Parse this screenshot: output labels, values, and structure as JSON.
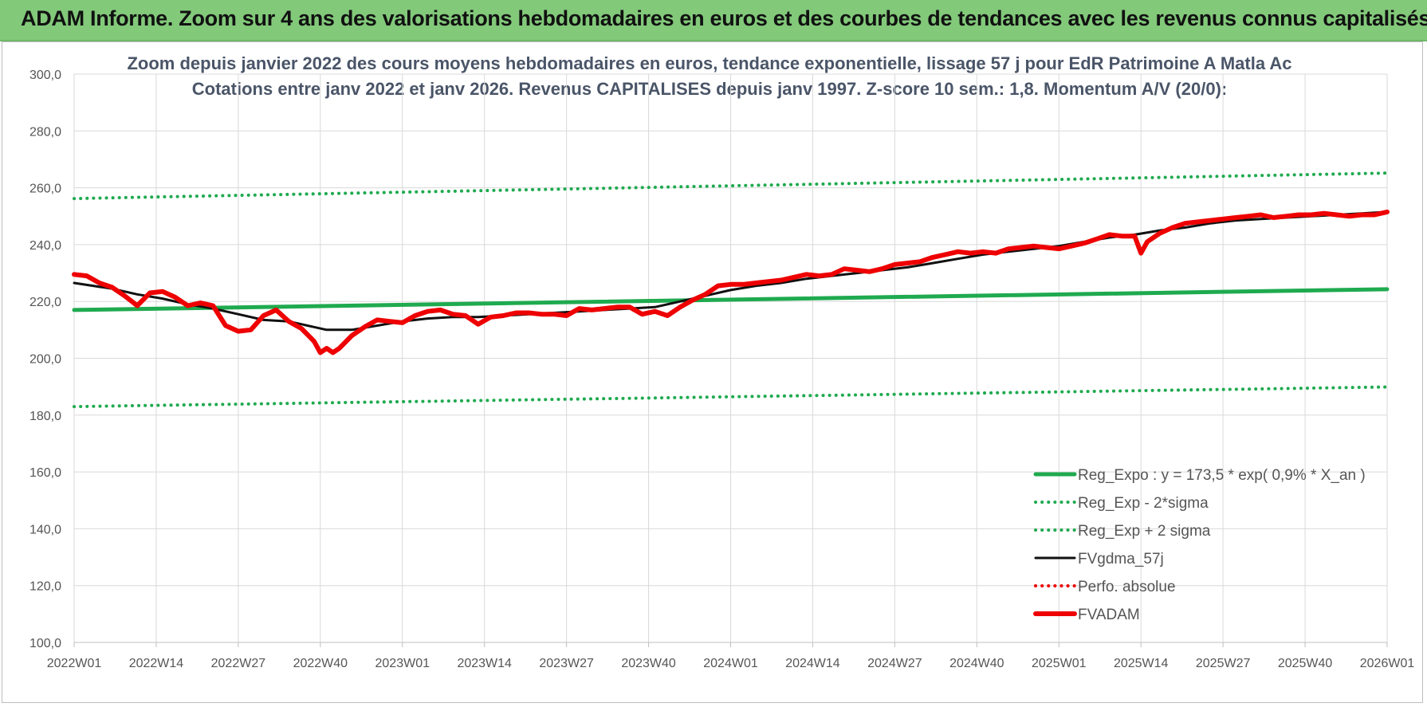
{
  "header": {
    "title": "ADAM Informe. Zoom sur 4 ans des valorisations hebdomadaires en euros et des courbes de tendances avec les revenus connus capitalisés"
  },
  "colors": {
    "header_bg": "#82c97a",
    "reg": "#1faa4f",
    "black": "#111111",
    "red": "#ee0000"
  },
  "chart_data": {
    "type": "line",
    "title": "Zoom depuis janvier 2022 des cours moyens hebdomadaires en euros, tendance exponentielle, lissage 57 j pour EdR Patrimoine A Matla Ac",
    "subtitle": "Cotations entre janv 2022 et janv 2026. Revenus CAPITALISES depuis janv 1997. Z-score 10 sem.: 1,8. Momentum A/V (20/0):",
    "ylim": [
      100,
      300
    ],
    "yticks": [
      "100,0",
      "120,0",
      "140,0",
      "160,0",
      "180,0",
      "200,0",
      "220,0",
      "240,0",
      "260,0",
      "280,0",
      "300,0"
    ],
    "xlim": [
      0,
      208
    ],
    "xtick_positions": [
      0,
      13,
      26,
      39,
      52,
      65,
      78,
      91,
      104,
      117,
      130,
      143,
      156,
      169,
      182,
      195,
      208
    ],
    "xticks": [
      "2022W01",
      "2022W14",
      "2022W27",
      "2022W40",
      "2023W01",
      "2023W14",
      "2023W27",
      "2023W40",
      "2024W01",
      "2024W14",
      "2024W27",
      "2024W40",
      "2025W01",
      "2025W14",
      "2025W27",
      "2025W40",
      "2026W01"
    ],
    "grid": true,
    "legend_position": "bottom-right",
    "series": [
      {
        "name": "Reg_Expo : y = 173,5 * exp( 0,9% *  X_an )",
        "style": "solid-thick",
        "color": "#1faa4f",
        "x": [
          0,
          208
        ],
        "y": [
          217.0,
          224.3
        ]
      },
      {
        "name": "Reg_Exp - 2*sigma",
        "style": "dotted",
        "color": "#1faa4f",
        "x": [
          0,
          208
        ],
        "y": [
          183.0,
          189.9
        ]
      },
      {
        "name": "Reg_Exp + 2 sigma",
        "style": "dotted",
        "color": "#1faa4f",
        "x": [
          0,
          208
        ],
        "y": [
          256.2,
          265.2
        ]
      },
      {
        "name": "FVgdma_57j",
        "style": "solid",
        "color": "#111111",
        "x": [
          0,
          6,
          10,
          14,
          18,
          22,
          26,
          30,
          34,
          38,
          40,
          44,
          48,
          52,
          56,
          60,
          64,
          68,
          72,
          76,
          80,
          84,
          88,
          92,
          96,
          100,
          104,
          108,
          112,
          116,
          120,
          124,
          128,
          132,
          136,
          140,
          144,
          148,
          152,
          156,
          160,
          164,
          168,
          172,
          176,
          180,
          184,
          188,
          192,
          196,
          200,
          204,
          208
        ],
        "y": [
          226.5,
          224.5,
          222.5,
          221.0,
          219.0,
          217.5,
          215.5,
          213.5,
          213.0,
          211.0,
          210.0,
          210.0,
          211.5,
          213.0,
          214.0,
          214.5,
          214.5,
          215.0,
          215.5,
          216.0,
          216.5,
          217.0,
          217.5,
          218.0,
          220.0,
          222.0,
          224.0,
          225.5,
          226.5,
          228.0,
          229.0,
          230.0,
          231.0,
          232.0,
          233.5,
          235.0,
          236.5,
          237.5,
          238.5,
          239.5,
          241.0,
          242.5,
          243.5,
          245.0,
          246.0,
          247.5,
          248.5,
          249.0,
          249.5,
          250.0,
          250.5,
          251.0,
          251.5
        ]
      },
      {
        "name": "Perfo. absolue",
        "style": "dotted",
        "color": "#ee0000",
        "x": [],
        "y": []
      },
      {
        "name": "FVADAM",
        "style": "solid-thick",
        "color": "#ee0000",
        "x": [
          0,
          2,
          4,
          6,
          8,
          10,
          12,
          14,
          16,
          18,
          20,
          22,
          24,
          26,
          28,
          30,
          32,
          34,
          36,
          38,
          39,
          40,
          41,
          42,
          44,
          46,
          48,
          50,
          52,
          54,
          56,
          58,
          60,
          62,
          64,
          66,
          68,
          70,
          72,
          74,
          76,
          78,
          80,
          82,
          84,
          86,
          88,
          90,
          92,
          94,
          96,
          98,
          100,
          102,
          104,
          106,
          108,
          110,
          112,
          114,
          116,
          118,
          120,
          122,
          124,
          126,
          128,
          130,
          132,
          134,
          136,
          138,
          140,
          142,
          144,
          146,
          148,
          150,
          152,
          154,
          156,
          158,
          160,
          162,
          164,
          166,
          168,
          169,
          170,
          172,
          174,
          176,
          178,
          180,
          182,
          184,
          186,
          188,
          190,
          192,
          194,
          196,
          198,
          200,
          202,
          204,
          206,
          208
        ],
        "y": [
          229.5,
          229.0,
          226.5,
          225.0,
          222.0,
          218.5,
          223.0,
          223.5,
          221.5,
          218.5,
          219.5,
          218.5,
          211.5,
          209.5,
          210.0,
          215.0,
          217.0,
          213.0,
          210.5,
          206.0,
          202.0,
          203.5,
          202.0,
          203.5,
          208.0,
          211.0,
          213.5,
          213.0,
          212.5,
          215.0,
          216.5,
          217.0,
          215.5,
          215.0,
          212.0,
          214.5,
          215.0,
          216.0,
          216.0,
          215.5,
          215.5,
          215.0,
          217.5,
          217.0,
          217.5,
          218.0,
          218.0,
          215.5,
          216.5,
          215.0,
          218.0,
          220.5,
          222.5,
          225.5,
          226.0,
          226.0,
          226.5,
          227.0,
          227.5,
          228.5,
          229.5,
          229.0,
          229.5,
          231.5,
          231.0,
          230.5,
          231.5,
          233.0,
          233.5,
          234.0,
          235.5,
          236.5,
          237.5,
          237.0,
          237.5,
          237.0,
          238.5,
          239.0,
          239.5,
          239.0,
          238.5,
          239.5,
          240.5,
          242.0,
          243.5,
          243.0,
          243.0,
          237.0,
          241.0,
          244.0,
          246.0,
          247.5,
          248.0,
          248.5,
          249.0,
          249.5,
          250.0,
          250.5,
          249.5,
          250.0,
          250.5,
          250.5,
          251.0,
          250.5,
          250.0,
          250.5,
          250.5,
          251.5
        ]
      }
    ]
  }
}
